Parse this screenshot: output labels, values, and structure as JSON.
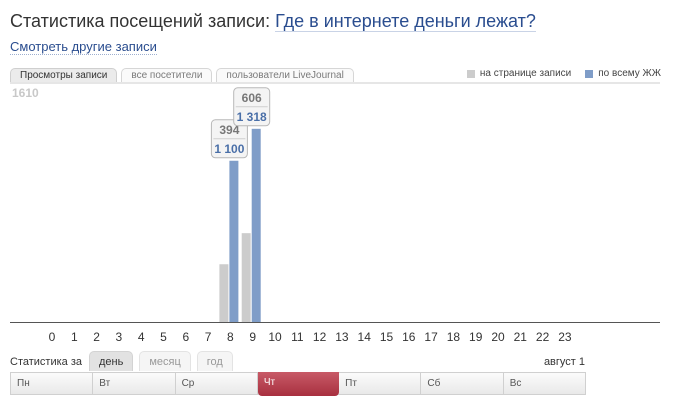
{
  "header": {
    "title_prefix": "Статистика посещений записи:",
    "post_title": "Где в интернете деньги лежат?",
    "other_posts_link": "Смотреть другие записи"
  },
  "tabs": [
    {
      "label": "Просмотры записи",
      "active": true
    },
    {
      "label": "все посетители",
      "active": false
    },
    {
      "label": "пользователи LiveJournal",
      "active": false
    }
  ],
  "legend": [
    {
      "label": "на странице записи",
      "color": "#cccccc"
    },
    {
      "label": "по всему ЖЖ",
      "color": "#7f9dc8"
    }
  ],
  "chart_data": {
    "type": "bar",
    "categories": [
      "0",
      "1",
      "2",
      "3",
      "4",
      "5",
      "6",
      "7",
      "8",
      "9",
      "10",
      "11",
      "12",
      "13",
      "14",
      "15",
      "16",
      "17",
      "18",
      "19",
      "20",
      "21",
      "22",
      "23"
    ],
    "ymax_label": "1610",
    "ylim": [
      0,
      1610
    ],
    "series": [
      {
        "name": "на странице записи",
        "color": "#cccccc",
        "values": [
          0,
          0,
          0,
          0,
          0,
          0,
          0,
          0,
          394,
          606,
          0,
          0,
          0,
          0,
          0,
          0,
          0,
          0,
          0,
          0,
          0,
          0,
          0,
          0
        ]
      },
      {
        "name": "по всему ЖЖ",
        "color": "#7f9dc8",
        "values": [
          0,
          0,
          0,
          0,
          0,
          0,
          0,
          0,
          1100,
          1318,
          0,
          0,
          0,
          0,
          0,
          0,
          0,
          0,
          0,
          0,
          0,
          0,
          0,
          0
        ]
      }
    ],
    "tooltips": [
      {
        "category": "8",
        "page": "394",
        "lj": "1 100"
      },
      {
        "category": "9",
        "page": "606",
        "lj": "1 318"
      }
    ]
  },
  "period": {
    "label": "Статистика за",
    "tabs": [
      {
        "label": "день",
        "active": true
      },
      {
        "label": "месяц",
        "active": false
      },
      {
        "label": "год",
        "active": false
      }
    ],
    "date": "август 1"
  },
  "weekdays": [
    {
      "label": "Пн",
      "active": false
    },
    {
      "label": "Вт",
      "active": false
    },
    {
      "label": "Ср",
      "active": false
    },
    {
      "label": "Чт",
      "active": true
    },
    {
      "label": "Пт",
      "active": false
    },
    {
      "label": "Сб",
      "active": false
    },
    {
      "label": "Вс",
      "active": false
    }
  ]
}
